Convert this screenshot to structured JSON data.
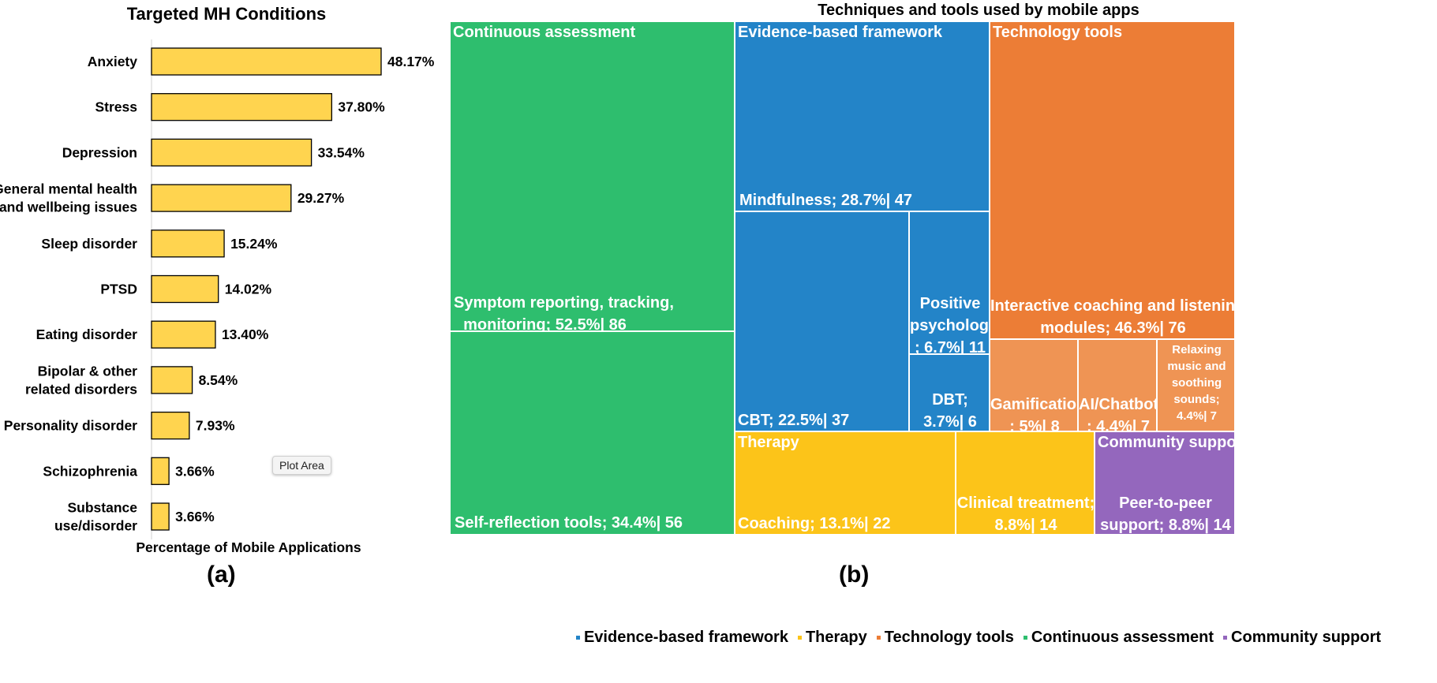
{
  "chart_data": [
    {
      "type": "bar",
      "orientation": "horizontal",
      "title": "Targeted MH Conditions",
      "xlabel": "Percentage of Mobile Applications",
      "categories": [
        [
          "Anxiety"
        ],
        [
          "Stress"
        ],
        [
          "Depression"
        ],
        [
          "General mental health",
          "and wellbeing issues"
        ],
        [
          "Sleep disorder"
        ],
        [
          "PTSD"
        ],
        [
          "Eating disorder"
        ],
        [
          "Bipolar & other",
          "related disorders"
        ],
        [
          "Personality disorder"
        ],
        [
          "Schizophrenia"
        ],
        [
          "Substance",
          "use/disorder"
        ]
      ],
      "values": [
        48.17,
        37.8,
        33.54,
        29.27,
        15.24,
        14.02,
        13.4,
        8.54,
        7.93,
        3.66,
        3.66
      ],
      "value_labels": [
        "48.17%",
        "37.80%",
        "33.54%",
        "29.27%",
        "15.24%",
        "14.02%",
        "13.40%",
        "8.54%",
        "7.93%",
        "3.66%",
        "3.66%"
      ],
      "xlim": [
        0,
        60
      ],
      "bar_color": "#FFD44F",
      "bar_edge_color": "#000000"
    },
    {
      "type": "treemap",
      "title": "Techniques and tools used by mobile apps",
      "groups": [
        {
          "name": "Continuous assessment",
          "color": "#2EBE6E",
          "items": [
            {
              "label": [
                "Symptom reporting, tracking,",
                "monitoring; 52.5%| 86"
              ],
              "percent": 52.5,
              "count": 86
            },
            {
              "label": [
                "Self-reflection tools; 34.4%| 56"
              ],
              "percent": 34.4,
              "count": 56
            }
          ]
        },
        {
          "name": "Evidence-based framework",
          "color": "#2384C8",
          "items": [
            {
              "label": [
                "Mindfulness; 28.7%| 47"
              ],
              "percent": 28.7,
              "count": 47
            },
            {
              "label": [
                "CBT; 22.5%| 37"
              ],
              "percent": 22.5,
              "count": 37
            },
            {
              "label": [
                "Positive",
                "psychology",
                "; 6.7%| 11"
              ],
              "percent": 6.7,
              "count": 11
            },
            {
              "label": [
                "DBT;",
                "3.7%| 6"
              ],
              "percent": 3.7,
              "count": 6
            }
          ]
        },
        {
          "name": "Technology tools",
          "color": "#EC7D36",
          "items": [
            {
              "label": [
                "Interactive coaching and listening",
                "modules; 46.3%| 76"
              ],
              "percent": 46.3,
              "count": 76
            },
            {
              "label": [
                "Gamification",
                "; 5%| 8"
              ],
              "percent": 5,
              "count": 8
            },
            {
              "label": [
                "AI/Chatbot",
                "; 4.4%| 7"
              ],
              "percent": 4.4,
              "count": 7
            },
            {
              "label": [
                "Relaxing",
                "music and",
                "soothing",
                "sounds;",
                "4.4%| 7"
              ],
              "percent": 4.4,
              "count": 7
            }
          ]
        },
        {
          "name": "Therapy",
          "color": "#FCC419",
          "items": [
            {
              "label": [
                "Coaching; 13.1%| 22"
              ],
              "percent": 13.1,
              "count": 22
            },
            {
              "label": [
                "Clinical treatment;",
                "8.8%| 14"
              ],
              "percent": 8.8,
              "count": 14
            }
          ]
        },
        {
          "name": "Community support",
          "color": "#9467BD",
          "items": [
            {
              "label": [
                "Peer-to-peer",
                "support; 8.8%| 14"
              ],
              "percent": 8.8,
              "count": 14
            }
          ]
        }
      ],
      "legend": [
        "Evidence-based framework",
        "Therapy",
        "Technology tools",
        "Continuous assessment",
        "Community support"
      ]
    }
  ],
  "panel_labels": {
    "a": "(a)",
    "b": "(b)"
  },
  "tooltip": "Plot Area"
}
